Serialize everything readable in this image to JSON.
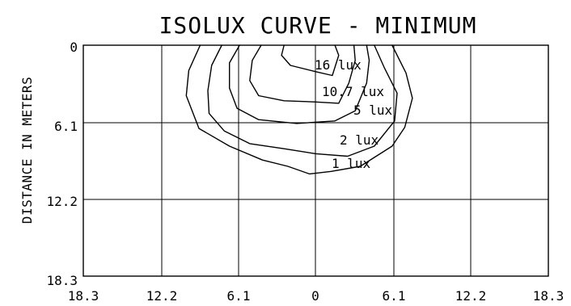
{
  "title": "ISOLUX CURVE - MINIMUM",
  "ylabel": "DISTANCE IN METERS",
  "x_ticks": [
    "18.3",
    "12.2",
    "6.1",
    "0",
    "6.1",
    "12.2",
    "18.3"
  ],
  "y_ticks": [
    "0",
    "6.1",
    "12.2",
    "18.3"
  ],
  "contour_labels": [
    {
      "text": "16 lux"
    },
    {
      "text": "10.7 lux"
    },
    {
      "text": "5 lux"
    },
    {
      "text": "2 lux"
    },
    {
      "text": "1 lux"
    }
  ],
  "chart_data": {
    "type": "contour",
    "title": "ISOLUX CURVE - MINIMUM",
    "xlabel": "",
    "ylabel": "DISTANCE IN METERS",
    "xlim": [
      -18.3,
      18.3
    ],
    "ylim": [
      0,
      18.3
    ],
    "x_tick_labels": [
      "18.3",
      "12.2",
      "6.1",
      "0",
      "6.1",
      "12.2",
      "18.3"
    ],
    "y_tick_labels": [
      "0",
      "6.1",
      "12.2",
      "18.3"
    ],
    "y_axis_inverted": true,
    "grid": true,
    "contours": [
      {
        "label": "16 lux",
        "points": [
          [
            -2.5,
            0.0
          ],
          [
            -2.7,
            0.8
          ],
          [
            -2.0,
            1.6
          ],
          [
            0.0,
            2.1
          ],
          [
            1.3,
            2.4
          ],
          [
            1.8,
            0.8
          ],
          [
            1.5,
            0.0
          ]
        ]
      },
      {
        "label": "10.7 lux",
        "points": [
          [
            -4.3,
            0.0
          ],
          [
            -5.0,
            1.2
          ],
          [
            -5.2,
            2.8
          ],
          [
            -4.5,
            4.0
          ],
          [
            -2.5,
            4.4
          ],
          [
            0.0,
            4.5
          ],
          [
            1.8,
            4.6
          ],
          [
            2.6,
            3.0
          ],
          [
            3.1,
            1.2
          ],
          [
            3.0,
            0.0
          ]
        ]
      },
      {
        "label": "5 lux",
        "points": [
          [
            -6.0,
            0.0
          ],
          [
            -6.8,
            1.4
          ],
          [
            -6.8,
            3.4
          ],
          [
            -6.2,
            5.0
          ],
          [
            -4.5,
            5.9
          ],
          [
            -1.5,
            6.2
          ],
          [
            1.5,
            6.0
          ],
          [
            3.1,
            5.2
          ],
          [
            4.0,
            3.0
          ],
          [
            4.2,
            1.2
          ],
          [
            4.0,
            0.0
          ]
        ]
      },
      {
        "label": "2 lux",
        "points": [
          [
            -7.4,
            0.0
          ],
          [
            -8.2,
            1.6
          ],
          [
            -8.5,
            3.6
          ],
          [
            -8.4,
            5.4
          ],
          [
            -7.2,
            6.8
          ],
          [
            -5.2,
            7.8
          ],
          [
            -2.5,
            8.2
          ],
          [
            0.0,
            8.6
          ],
          [
            2.5,
            8.8
          ],
          [
            4.6,
            8.0
          ],
          [
            6.2,
            6.0
          ],
          [
            6.4,
            3.8
          ],
          [
            5.4,
            1.8
          ],
          [
            4.6,
            0.0
          ]
        ]
      },
      {
        "label": "1 lux",
        "points": [
          [
            -9.1,
            0.0
          ],
          [
            -10.0,
            2.0
          ],
          [
            -10.2,
            4.0
          ],
          [
            -9.2,
            6.6
          ],
          [
            -6.8,
            8.0
          ],
          [
            -4.2,
            9.1
          ],
          [
            -2.2,
            9.6
          ],
          [
            -0.5,
            10.2
          ],
          [
            1.2,
            10.0
          ],
          [
            3.5,
            9.6
          ],
          [
            6.0,
            8.0
          ],
          [
            7.0,
            6.5
          ],
          [
            7.6,
            4.2
          ],
          [
            7.1,
            2.2
          ],
          [
            6.0,
            0.0
          ]
        ]
      }
    ]
  }
}
